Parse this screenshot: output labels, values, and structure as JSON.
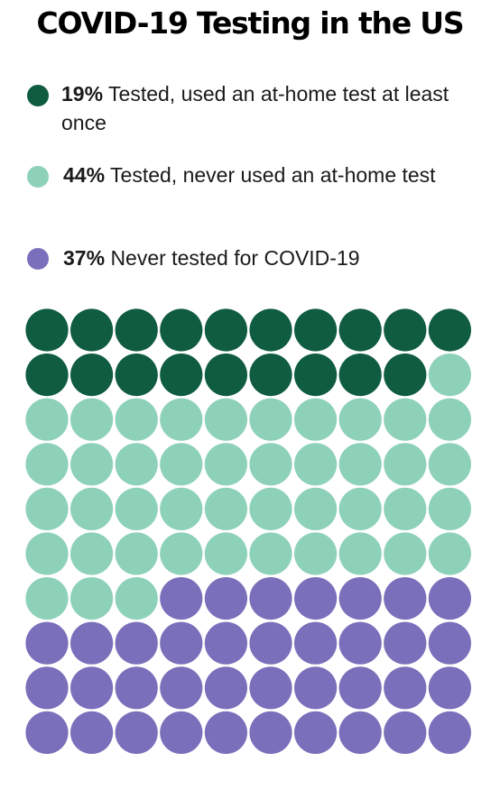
{
  "chart_data": {
    "type": "waffle",
    "title": "COVID-19 Testing in the US",
    "grid": {
      "rows": 10,
      "cols": 10,
      "fill_order": "row-major, top-left first"
    },
    "categories": [
      {
        "percent": "19%",
        "value": 19,
        "label": "Tested, used an at-home test at least once",
        "color": "#0f5c40"
      },
      {
        "percent": "44%",
        "value": 44,
        "label": "Tested, never used an at-home test",
        "color": "#8ed1b9"
      },
      {
        "percent": "37%",
        "value": 37,
        "label": "Never tested for COVID-19",
        "color": "#7a6fba"
      }
    ]
  }
}
